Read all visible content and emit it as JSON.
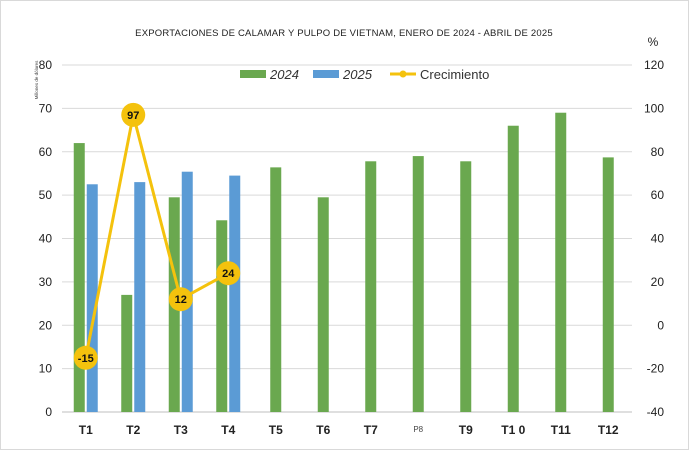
{
  "chart_data": {
    "type": "bar",
    "title": "EXPORTACIONES DE CALAMAR Y PULPO DE VIETNAM, ENERO DE 2024 - ABRIL DE 2025",
    "ylabel": "Millones de dólares",
    "y2label": "%",
    "ylim": [
      0,
      80
    ],
    "y2lim": [
      -40,
      120
    ],
    "yticks": [
      "0",
      "10",
      "20",
      "30",
      "40",
      "50",
      "60",
      "70",
      "80"
    ],
    "y2ticks": [
      "-40",
      "-20",
      "0",
      "20",
      "40",
      "60",
      "80",
      "100",
      "120"
    ],
    "categories": [
      "T1",
      "T2",
      "T3",
      "T4",
      "T5",
      "T6",
      "T7",
      "P8",
      "T9",
      "T1 0",
      "T11",
      "T12"
    ],
    "grid": true,
    "legend_position": "top-center",
    "series": [
      {
        "name": "2024",
        "type": "bar",
        "axis": "left",
        "color": "#6aa84f",
        "values": [
          62,
          27,
          49.5,
          44.2,
          56.4,
          49.5,
          57.8,
          59,
          57.8,
          66,
          69,
          58.7
        ]
      },
      {
        "name": "2025",
        "type": "bar",
        "axis": "left",
        "color": "#5b9bd5",
        "values": [
          52.5,
          53,
          55.4,
          54.5,
          null,
          null,
          null,
          null,
          null,
          null,
          null,
          null
        ]
      },
      {
        "name": "Crecimiento",
        "type": "line",
        "axis": "right",
        "color": "#f4c20d",
        "values": [
          -15,
          97,
          12,
          24,
          null,
          null,
          null,
          null,
          null,
          null,
          null,
          null
        ],
        "labels": [
          "-15",
          "97",
          "12",
          "24",
          null,
          null,
          null,
          null,
          null,
          null,
          null,
          null
        ]
      }
    ]
  }
}
